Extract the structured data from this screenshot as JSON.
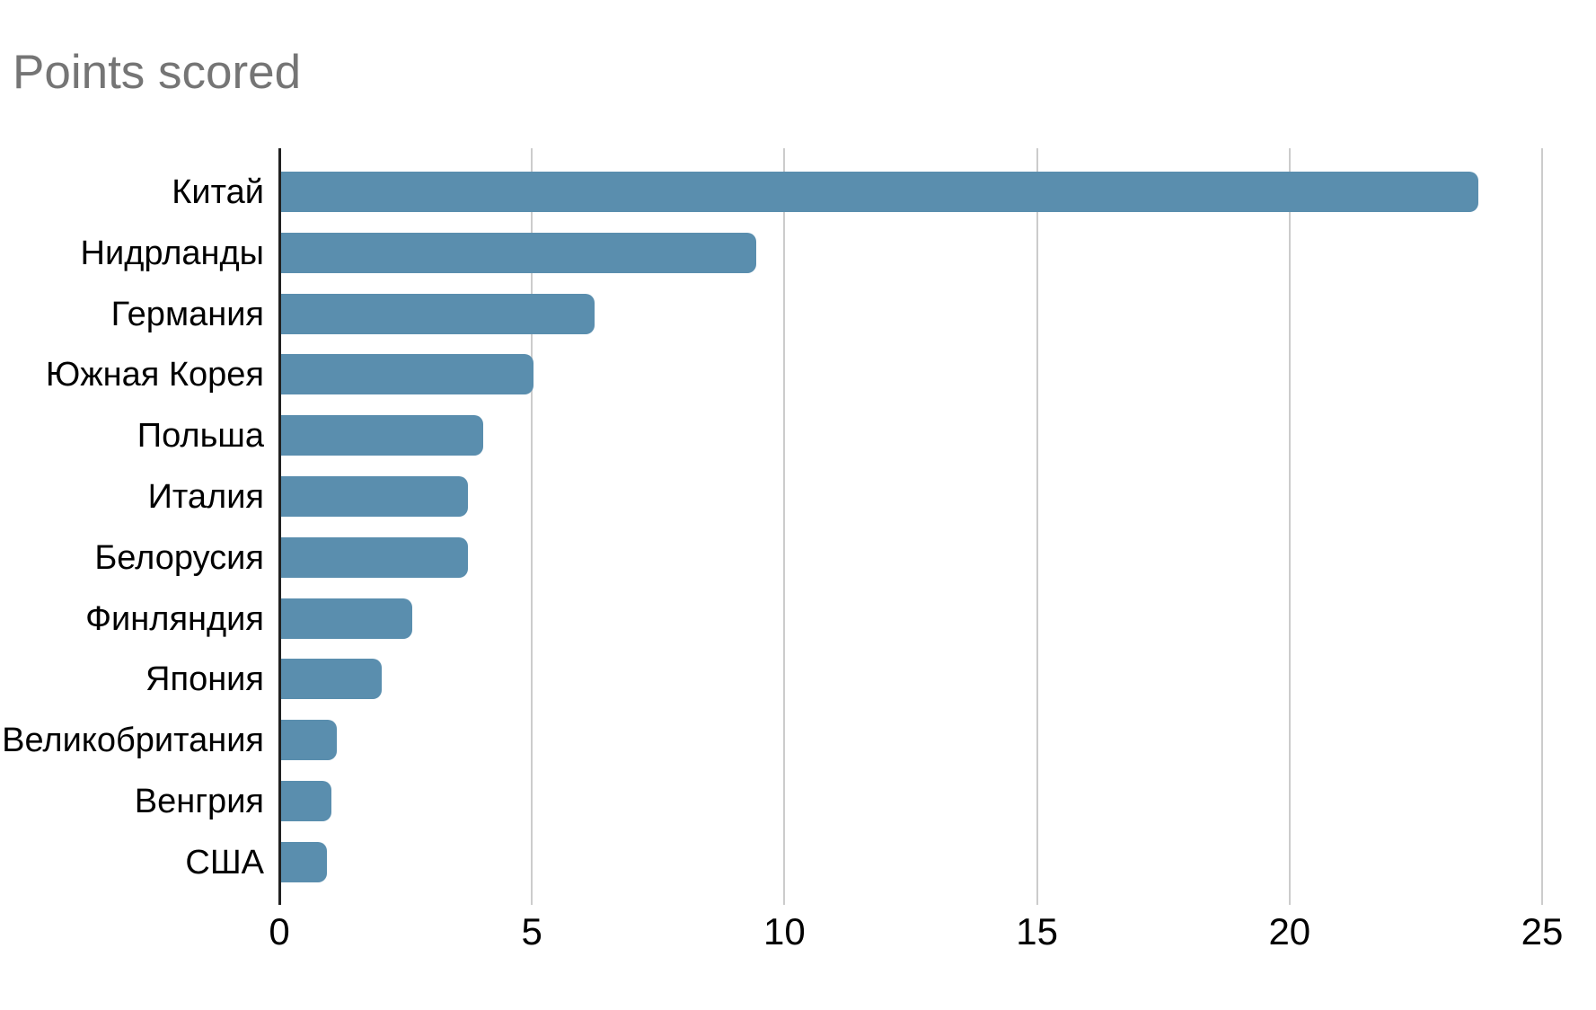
{
  "title": "Points scored",
  "colors": {
    "bar": "#5A8EAE",
    "title_text": "#757575",
    "axis_line": "#212121",
    "gridline": "#CCCCCC",
    "tick_text": "#000000",
    "label_text": "#000000",
    "background": "#FFFFFF"
  },
  "chart_data": {
    "type": "bar",
    "orientation": "horizontal",
    "title": "Points scored",
    "categories": [
      "Китай",
      "Нидрланды",
      "Германия",
      "Южная Корея",
      "Польша",
      "Италия",
      "Белорусия",
      "Финляндия",
      "Япония",
      "Великобритания",
      "Венгрия",
      "США"
    ],
    "values": [
      23.7,
      9.4,
      6.2,
      5,
      4,
      3.7,
      3.7,
      2.6,
      2,
      1.1,
      1,
      0.9
    ],
    "xlabel": "",
    "ylabel": "",
    "xlim": [
      0,
      25
    ],
    "x_ticks": [
      0,
      5,
      10,
      15,
      20,
      25
    ],
    "grid": "vertical-only",
    "legend": "none",
    "bars_sorted_descending": true
  }
}
